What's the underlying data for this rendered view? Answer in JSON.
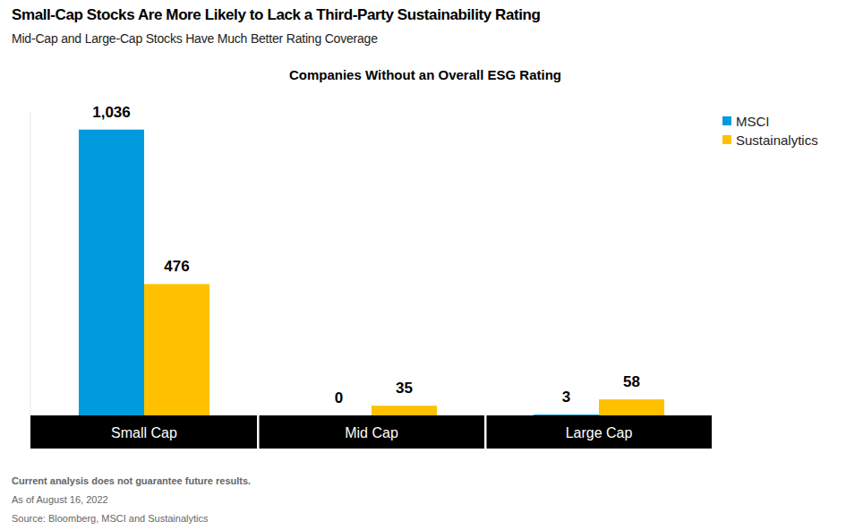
{
  "chart_data": {
    "type": "bar",
    "title": "Small-Cap Stocks Are More Likely to Lack a Third-Party Sustainability Rating",
    "subtitle": "Mid-Cap and Large-Cap Stocks Have Much Better Rating Coverage",
    "heading": "Companies Without an Overall ESG Rating",
    "annotations": [
      "Current analysis does not guarantee future results.",
      "As of August 16, 2022",
      "Source: Bloomberg, MSCI and Sustainalytics"
    ],
    "categories": [
      "Small Cap",
      "Mid Cap",
      "Large Cap"
    ],
    "series": [
      {
        "name": "MSCI",
        "color": "#009bde",
        "values": [
          1036,
          0,
          3
        ],
        "value_labels": [
          "1,036",
          "0",
          "3"
        ]
      },
      {
        "name": "Sustainalytics",
        "color": "#ffc000",
        "values": [
          476,
          35,
          58
        ]
      }
    ],
    "ylim": [
      0,
      1100
    ],
    "tick_labels": "x",
    "data_labels": true,
    "legend": "top-right",
    "grid": false
  }
}
